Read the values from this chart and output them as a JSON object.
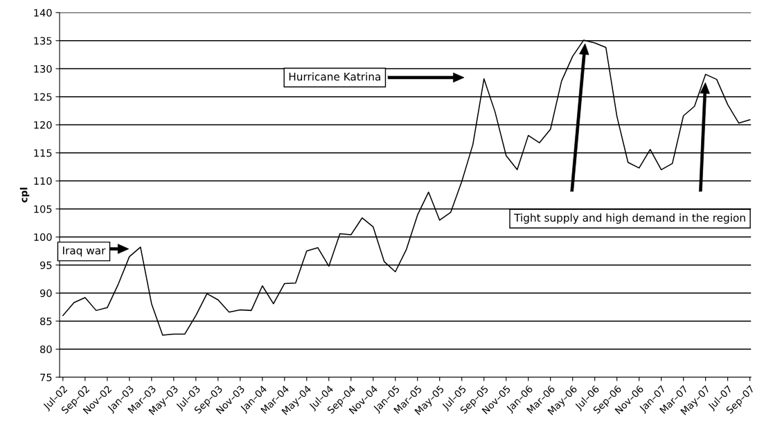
{
  "chart_data": {
    "type": "line",
    "ylabel": "cpl",
    "categories": [
      "Jul–02",
      null,
      "Sep–02",
      null,
      "Nov–02",
      null,
      "Jan–03",
      null,
      "Mar–03",
      null,
      "May–03",
      null,
      "Jul–03",
      null,
      "Sep–03",
      null,
      "Nov–03",
      null,
      "Jan–04",
      null,
      "Mar–04",
      null,
      "May–04",
      null,
      "Jul–04",
      null,
      "Sep–04",
      null,
      "Nov–04",
      null,
      "Jan–05",
      null,
      "Mar–05",
      null,
      "May–05",
      null,
      "Jul–05",
      null,
      "Sep–05",
      null,
      "Nov–05",
      null,
      "Jan–06",
      null,
      "Mar–06",
      null,
      "May–06",
      null,
      "Jul–06",
      null,
      "Sep–06",
      null,
      "Nov–06",
      null,
      "Jan–07",
      null,
      "Mar–07",
      null,
      "May–07",
      null,
      "Jul–07",
      null,
      "Sep–07"
    ],
    "series": [
      {
        "color": "#000000",
        "values": [
          86.0,
          88.3,
          89.2,
          86.9,
          87.4,
          91.6,
          96.5,
          98.2,
          88.1,
          82.5,
          82.7,
          82.7,
          86.0,
          89.9,
          88.8,
          86.6,
          87.0,
          86.9,
          91.3,
          88.1,
          91.7,
          91.8,
          97.5,
          98.1,
          94.8,
          100.6,
          100.4,
          103.4,
          101.8,
          95.6,
          93.8,
          97.8,
          103.9,
          108.0,
          103.0,
          104.4,
          109.9,
          116.5,
          128.2,
          122.3,
          114.5,
          112.0,
          118.1,
          116.8,
          119.2,
          127.8,
          132.2,
          135.1,
          134.6,
          133.8,
          121.5,
          113.3,
          112.3,
          115.6,
          112.0,
          113.1,
          121.6,
          123.3,
          129.0,
          128.1,
          123.6,
          120.3,
          120.9
        ]
      }
    ],
    "ylim": [
      75,
      140
    ],
    "yticks": [
      75,
      80,
      85,
      90,
      95,
      100,
      105,
      110,
      115,
      120,
      125,
      130,
      135,
      140
    ],
    "grid": "y",
    "legend": false,
    "marker": "none",
    "line_style": "solid",
    "annotations": [
      "Iraq war",
      "Hurricane Katrina",
      "Tight supply and high demand in the region"
    ]
  }
}
